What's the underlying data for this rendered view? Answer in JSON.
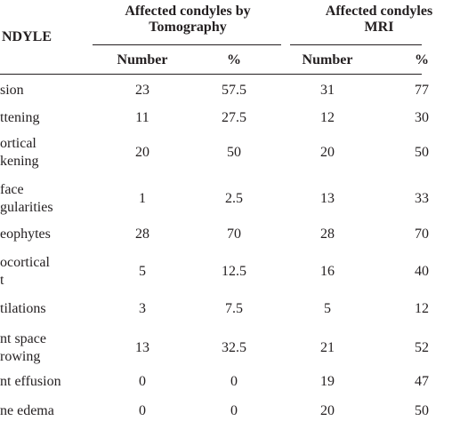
{
  "header": {
    "condyle_col": "NDYLE",
    "tomo_group_line1": "Affected condyles by",
    "tomo_group_line2": "Tomography",
    "mri_group_line1": "Affected condyles",
    "mri_group_line2": "MRI",
    "tomo_number": "Number",
    "tomo_percent": "%",
    "mri_number": "Number",
    "mri_percent": "%"
  },
  "rows": [
    {
      "label_lines": [
        "sion"
      ],
      "tomo_n": "23",
      "tomo_p": "57.5",
      "mri_n": "31",
      "mri_p": "77"
    },
    {
      "label_lines": [
        "ttening"
      ],
      "tomo_n": "11",
      "tomo_p": "27.5",
      "mri_n": "12",
      "mri_p": "30"
    },
    {
      "label_lines": [
        "ortical",
        "kening"
      ],
      "tomo_n": "20",
      "tomo_p": "50",
      "mri_n": "20",
      "mri_p": "50"
    },
    {
      "label_lines": [
        "face",
        "gularities"
      ],
      "tomo_n": "1",
      "tomo_p": "2.5",
      "mri_n": "13",
      "mri_p": "33"
    },
    {
      "label_lines": [
        "eophytes"
      ],
      "tomo_n": "28",
      "tomo_p": "70",
      "mri_n": "28",
      "mri_p": "70"
    },
    {
      "label_lines": [
        "ocortical",
        "t"
      ],
      "tomo_n": "5",
      "tomo_p": "12.5",
      "mri_n": "16",
      "mri_p": "40"
    },
    {
      "label_lines": [
        "tilations"
      ],
      "tomo_n": "3",
      "tomo_p": "7.5",
      "mri_n": "5",
      "mri_p": "12"
    },
    {
      "label_lines": [
        "nt space",
        "rowing"
      ],
      "tomo_n": "13",
      "tomo_p": "32.5",
      "mri_n": "21",
      "mri_p": "52"
    },
    {
      "label_lines": [
        "nt effusion"
      ],
      "tomo_n": "0",
      "tomo_p": "0",
      "mri_n": "19",
      "mri_p": "47"
    },
    {
      "label_lines": [
        "ne edema"
      ],
      "tomo_n": "0",
      "tomo_p": "0",
      "mri_n": "20",
      "mri_p": "50"
    }
  ]
}
